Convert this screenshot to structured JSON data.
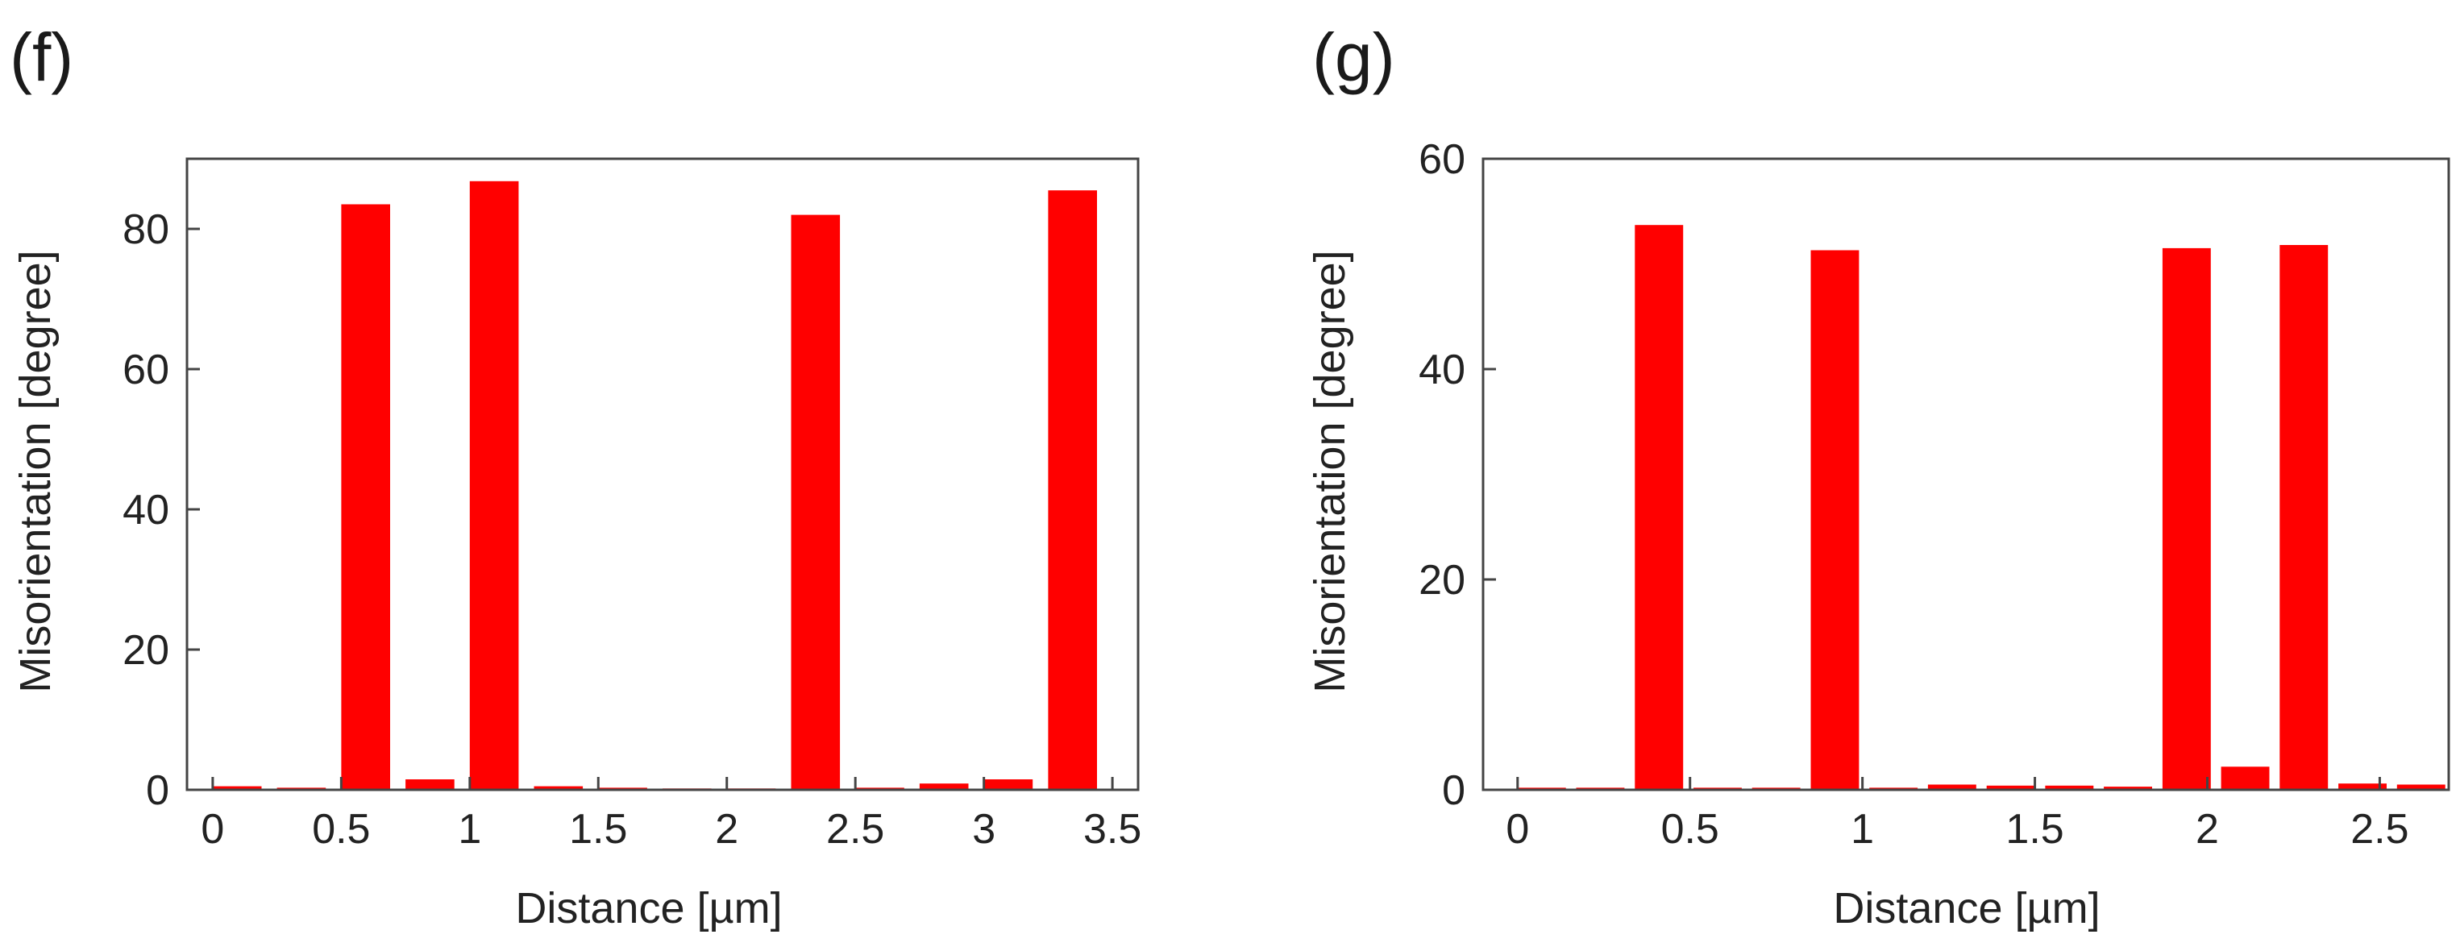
{
  "chart_data": [
    {
      "panel_label": "(f)",
      "type": "bar",
      "title": "",
      "xlabel": "Distance [µm]",
      "ylabel": "Misorientation [degree]",
      "xlim": [
        -0.1,
        3.6
      ],
      "ylim": [
        0,
        90
      ],
      "grid": false,
      "bar_color": "#ff0000",
      "x_ticks": [
        0,
        0.5,
        1,
        1.5,
        2,
        2.5,
        3,
        3.5
      ],
      "x_tick_labels": [
        "0",
        "0.5",
        "1",
        "1.5",
        "2",
        "2.5",
        "3",
        "3.5"
      ],
      "y_ticks": [
        0,
        20,
        40,
        60,
        80
      ],
      "y_tick_labels": [
        "0",
        "20",
        "40",
        "60",
        "80"
      ],
      "bar_width": 0.19,
      "x": [
        0.0,
        0.25,
        0.5,
        0.75,
        1.0,
        1.25,
        1.5,
        1.75,
        2.0,
        2.25,
        2.5,
        2.75,
        3.0,
        3.25
      ],
      "values": [
        0.5,
        0.3,
        83.5,
        1.5,
        86.8,
        0.5,
        0.3,
        0.2,
        0.2,
        82.0,
        0.3,
        0.9,
        1.5,
        85.5
      ]
    },
    {
      "panel_label": "(g)",
      "type": "bar",
      "title": "",
      "xlabel": "Distance [µm]",
      "ylabel": "Misorientation [degree]",
      "xlim": [
        -0.1,
        2.7
      ],
      "ylim": [
        0,
        60
      ],
      "grid": false,
      "bar_color": "#ff0000",
      "x_ticks": [
        0,
        0.5,
        1,
        1.5,
        2,
        2.5
      ],
      "x_tick_labels": [
        "0",
        "0.5",
        "1",
        "1.5",
        "2",
        "2.5"
      ],
      "y_ticks": [
        0,
        20,
        40,
        60
      ],
      "y_tick_labels": [
        "0",
        "20",
        "40",
        "60"
      ],
      "bar_width": 0.14,
      "x": [
        0.0,
        0.17,
        0.34,
        0.51,
        0.68,
        0.85,
        1.02,
        1.19,
        1.36,
        1.53,
        1.7,
        1.87,
        2.04,
        2.21,
        2.38,
        2.55
      ],
      "values": [
        0.2,
        0.2,
        53.7,
        0.2,
        0.2,
        51.3,
        0.2,
        0.5,
        0.4,
        0.4,
        0.3,
        51.5,
        2.2,
        51.8,
        0.6,
        0.5
      ]
    }
  ]
}
